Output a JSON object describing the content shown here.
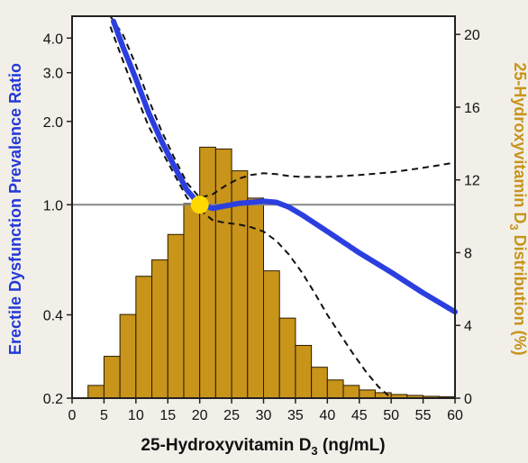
{
  "chart_data": {
    "type": "bar",
    "xlabel": {
      "main": "25-Hydroxyvitamin D",
      "sub": "3",
      "unit": " (ng/mL)"
    },
    "ylabel_left": "Erectile Dysfunction Prevalence Ratio",
    "ylabel_right": {
      "main": "25-Hydroxyvitamin D",
      "sub": "3",
      "unit": " Distribution (%)"
    },
    "xlim": [
      0,
      60
    ],
    "x_ticks": [
      "0",
      "5",
      "10",
      "15",
      "20",
      "25",
      "30",
      "35",
      "40",
      "45",
      "50",
      "55",
      "60"
    ],
    "y_left_scale": "log",
    "y_left_lim": [
      0.2,
      4.8
    ],
    "y_left_ticks": [
      {
        "value": 0.2,
        "label": "0.2"
      },
      {
        "value": 0.4,
        "label": "0.4"
      },
      {
        "value": 1.0,
        "label": "1.0"
      },
      {
        "value": 2.0,
        "label": "2.0"
      },
      {
        "value": 3.0,
        "label": "3.0"
      },
      {
        "value": 4.0,
        "label": "4.0"
      }
    ],
    "y_right_lim": [
      0,
      21
    ],
    "y_right_ticks": [
      "0",
      "4",
      "8",
      "12",
      "16",
      "20"
    ],
    "reference_line": 1.0,
    "reference_point": {
      "x": 20,
      "y": 1.0
    },
    "histogram": {
      "name": "25-Hydroxyvitamin D3 distribution",
      "bin_width": 2.5,
      "bin_starts": [
        2.5,
        5,
        7.5,
        10,
        12.5,
        15,
        17.5,
        20,
        22.5,
        25,
        27.5,
        30,
        32.5,
        35,
        37.5,
        40,
        42.5,
        45,
        47.5,
        50,
        52.5,
        55,
        57.5
      ],
      "values": [
        0.7,
        2.3,
        4.6,
        6.7,
        7.6,
        9.0,
        10.7,
        13.8,
        13.7,
        12.5,
        11.0,
        7.0,
        4.4,
        2.9,
        1.7,
        1.0,
        0.7,
        0.45,
        0.3,
        0.2,
        0.15,
        0.1,
        0.08
      ]
    },
    "series": [
      {
        "name": "Prevalence ratio",
        "x": [
          6.5,
          8,
          10,
          12,
          14,
          16,
          18,
          20,
          22,
          24,
          26,
          28,
          30,
          32,
          34,
          36,
          40,
          45,
          50,
          55,
          60
        ],
        "y": [
          4.6,
          3.7,
          2.85,
          2.15,
          1.7,
          1.38,
          1.13,
          1.0,
          0.97,
          0.99,
          1.01,
          1.02,
          1.03,
          1.02,
          0.98,
          0.92,
          0.8,
          0.67,
          0.57,
          0.48,
          0.41
        ]
      },
      {
        "name": "Upper 95% CI",
        "x": [
          6,
          8,
          10,
          12,
          14,
          16,
          18,
          20,
          22,
          24,
          26,
          28,
          30,
          32,
          34,
          36,
          40,
          45,
          50,
          55,
          60
        ],
        "y": [
          4.8,
          4.1,
          3.2,
          2.4,
          1.85,
          1.48,
          1.2,
          1.06,
          1.09,
          1.17,
          1.24,
          1.28,
          1.3,
          1.29,
          1.27,
          1.26,
          1.26,
          1.28,
          1.31,
          1.36,
          1.42
        ]
      },
      {
        "name": "Lower 95% CI",
        "x": [
          6,
          8,
          10,
          12,
          14,
          16,
          18,
          20,
          22,
          24,
          26,
          28,
          30,
          32,
          34,
          36,
          38,
          40,
          42,
          44,
          46,
          48,
          50
        ],
        "y": [
          4.4,
          3.3,
          2.5,
          1.92,
          1.57,
          1.29,
          1.06,
          0.96,
          0.88,
          0.86,
          0.85,
          0.83,
          0.8,
          0.74,
          0.66,
          0.57,
          0.48,
          0.4,
          0.34,
          0.29,
          0.25,
          0.22,
          0.2
        ]
      }
    ],
    "colors": {
      "bars": "#c8941a",
      "bar_edge": "#2a1a00",
      "main_line": "#2b3fe0",
      "ci_line": "#111111",
      "ref_line": "#888888",
      "ref_point": "#ffd900",
      "left_title": "#2438d8",
      "right_title": "#c8941a"
    }
  }
}
